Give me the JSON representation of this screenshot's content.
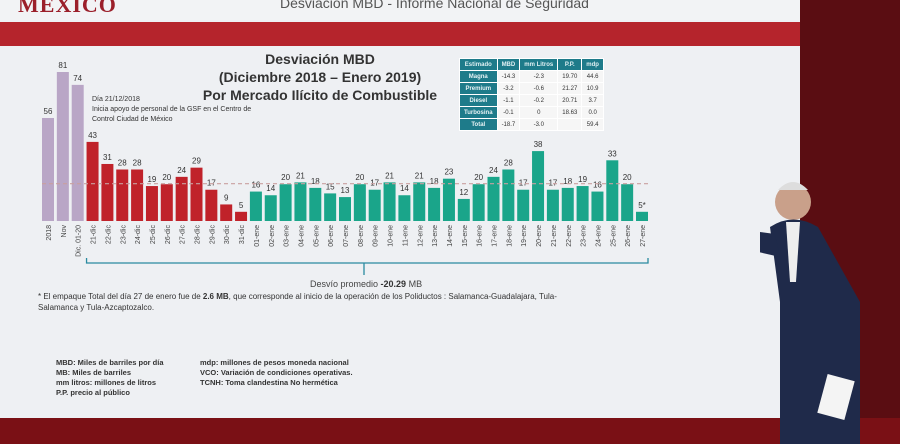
{
  "header": {
    "logo": "MÉXICO",
    "title": "Desviación MBD - Informe Nacional de Seguridad"
  },
  "note": {
    "line1": "Día 21/12/2018",
    "line2": "Inicia apoyo de personal de la GSF en el Centro de Control Ciudad de México"
  },
  "summary_table": {
    "headers": [
      "Estimado",
      "MBD",
      "mm Litros",
      "P.P.",
      "mdp"
    ],
    "rows": [
      [
        "Magna",
        "-14.3",
        "-2.3",
        "19.70",
        "44.6"
      ],
      [
        "Premium",
        "-3.2",
        "-0.6",
        "21.27",
        "10.9"
      ],
      [
        "Diesel",
        "-1.1",
        "-0.2",
        "20.71",
        "3.7"
      ],
      [
        "Turbosina",
        "-0.1",
        "0",
        "18.63",
        "0.0"
      ],
      [
        "Total",
        "-18.7",
        "-3.0",
        "",
        "59.4"
      ]
    ]
  },
  "average": {
    "label": "Desvío promedio ",
    "value": "-20.29",
    "unit": " MB"
  },
  "footnote": {
    "text1": "* El empaque Total del día 27 de enero fue de ",
    "bold": "2.6 MB",
    "text2": ", que corresponde al inicio de la operación de los Poliductos : Salamanca-Guadalajara, Tula-Salamanca y Tula-Azcaptozalco."
  },
  "glossary": {
    "left": [
      "MBD: Miles de barriles por día",
      "MB: Miles de barriles",
      "mm litros: millones de litros",
      "P.P. precio al público"
    ],
    "right": [
      "mdp: millones de pesos moneda nacional",
      "VCO: Variación de condiciones operativas.",
      "TCNH: Toma clandestina No hermética"
    ]
  },
  "colors": {
    "baseline": "#b9a6c6",
    "december": "#c0222a",
    "january": "#1aa58a",
    "accent": "#b5242c"
  },
  "chart_data": {
    "type": "bar",
    "title": "Desviación MBD",
    "subtitle": "(Diciembre 2018 – Enero 2019)",
    "subtitle2": "Por Mercado Ilícito de Combustible",
    "categories": [
      "2018",
      "Nov",
      "Dic. 01-20",
      "21-dic",
      "22-dic",
      "23-dic",
      "24-dic",
      "25-dic",
      "26-dic",
      "27-dic",
      "28-dic",
      "29-dic",
      "30-dic",
      "31-dic",
      "01-ene",
      "02-ene",
      "03-ene",
      "04-ene",
      "05-ene",
      "06-ene",
      "07-ene",
      "08-ene",
      "09-ene",
      "10-ene",
      "11-ene",
      "12-ene",
      "13-ene",
      "14-ene",
      "15-ene",
      "16-ene",
      "17-ene",
      "18-ene",
      "19-ene",
      "20-ene",
      "21-ene",
      "22-ene",
      "23-ene",
      "24-ene",
      "25-ene",
      "26-ene",
      "27-ene"
    ],
    "values": [
      56,
      81,
      74,
      43,
      31,
      28,
      28,
      19,
      20,
      24,
      29,
      17,
      9,
      5,
      16,
      14,
      20,
      21,
      18,
      15,
      13,
      20,
      17,
      21,
      14,
      21,
      18,
      23,
      12,
      20,
      24,
      28,
      17,
      38,
      17,
      18,
      19,
      16,
      33,
      20,
      5
    ],
    "data_labels": [
      "56",
      "81",
      "74",
      "43",
      "31",
      "28",
      "28",
      "19",
      "20",
      "24",
      "29",
      "17",
      "9",
      "5",
      "16",
      "14",
      "20",
      "21",
      "18",
      "15",
      "13",
      "20",
      "17",
      "21",
      "14",
      "21",
      "18",
      "23",
      "12",
      "20",
      "24",
      "28",
      "17",
      "38",
      "17",
      "18",
      "19",
      "16",
      "33",
      "20",
      "5*"
    ],
    "groups": [
      "baseline",
      "baseline",
      "baseline",
      "december",
      "december",
      "december",
      "december",
      "december",
      "december",
      "december",
      "december",
      "december",
      "december",
      "december",
      "january",
      "january",
      "january",
      "january",
      "january",
      "january",
      "january",
      "january",
      "january",
      "january",
      "january",
      "january",
      "january",
      "january",
      "january",
      "january",
      "january",
      "january",
      "january",
      "january",
      "january",
      "january",
      "january",
      "january",
      "january",
      "january",
      "january"
    ],
    "average_line": 20.29,
    "ylim": [
      0,
      81
    ],
    "grid": false,
    "legend": "none"
  }
}
